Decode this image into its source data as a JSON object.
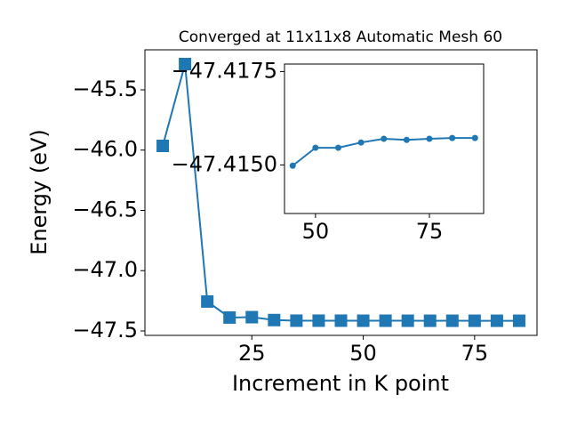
{
  "chart_data": [
    {
      "type": "line",
      "title": "Converged at 11x11x8 Automatic Mesh 60",
      "x_label": "Increment in K point",
      "y_label": "Energy (eV)",
      "x": [
        5,
        10,
        15,
        20,
        25,
        30,
        35,
        40,
        45,
        50,
        55,
        60,
        65,
        70,
        75,
        80,
        85
      ],
      "series": [
        {
          "color": "#1f77b4",
          "marker": "square",
          "values": [
            -45.965,
            -45.286,
            -47.256,
            -47.389,
            -47.386,
            -47.41,
            -47.415,
            -47.415,
            -47.41498,
            -47.41546,
            -47.41546,
            -47.4156,
            -47.4157,
            -47.41567,
            -47.4157,
            -47.41572,
            -47.41572
          ]
        }
      ],
      "xlim": [
        1,
        89
      ],
      "ylim": [
        -47.537,
        -45.168
      ],
      "xticks": [
        25,
        50,
        75
      ],
      "yticks": [
        {
          "value": -45.5,
          "label": "−45.5"
        },
        {
          "value": -46.0,
          "label": "−46.0"
        },
        {
          "value": -46.5,
          "label": "−46.5"
        },
        {
          "value": -47.0,
          "label": "−47.0"
        },
        {
          "value": -47.5,
          "label": "−47.5"
        }
      ]
    },
    {
      "type": "line",
      "x": [
        45,
        50,
        55,
        60,
        65,
        70,
        75,
        80,
        85
      ],
      "series": [
        {
          "color": "#1f77b4",
          "marker": "circle",
          "values": [
            -47.41498,
            -47.41546,
            -47.41546,
            -47.4156,
            -47.4157,
            -47.41567,
            -47.4157,
            -47.41572,
            -47.41572
          ]
        }
      ],
      "xlim": [
        43.2,
        86.9
      ],
      "ylim": [
        -47.4137,
        -47.4177
      ],
      "xticks": [
        50,
        75
      ],
      "yticks": [
        {
          "value": -47.4175,
          "label": "−47.4175"
        },
        {
          "value": -47.415,
          "label": "−47.4150"
        }
      ]
    }
  ]
}
